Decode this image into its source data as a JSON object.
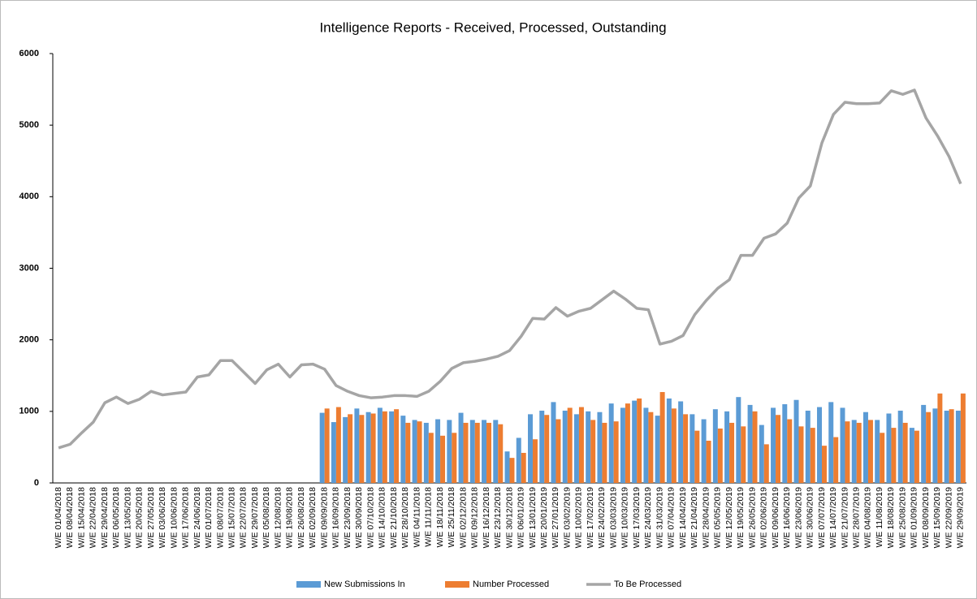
{
  "chart_data": {
    "type": "bar-line",
    "title": "Intelligence Reports - Received, Processed, Outstanding",
    "categories": [
      "W/E 01/04/2018",
      "W/E 08/04/2018",
      "W/E 15/04/2018",
      "W/E 22/04/2018",
      "W/E 29/04/2018",
      "W/E 06/05/2018",
      "W/E 13/05/2018",
      "W/E 20/05/2018",
      "W/E 27/05/2018",
      "W/E 03/06/2018",
      "W/E 10/06/2018",
      "W/E 17/06/2018",
      "W/E 24/06/2018",
      "W/E 01/07/2018",
      "W/E 08/07/2018",
      "W/E 15/07/2018",
      "W/E 22/07/2018",
      "W/E 29/07/2018",
      "W/E 05/08/2018",
      "W/E 12/08/2018",
      "W/E 19/08/2018",
      "W/E 26/08/2018",
      "W/E 02/09/2018",
      "W/E 09/09/2018",
      "W/E 16/09/2018",
      "W/E 23/09/2018",
      "W/E 30/09/2018",
      "W/E 07/10/2018",
      "W/E 14/10/2018",
      "W/E 21/10/2018",
      "W/E 28/10/2018",
      "W/E 04/11/2018",
      "W/E 11/11/2018",
      "W/E 18/11/2018",
      "W/E 25/11/2018",
      "W/E 02/12/2018",
      "W/E 09/12/2018",
      "W/E 16/12/2018",
      "W/E 23/12/2018",
      "W/E 30/12/2018",
      "W/E 06/01/2019",
      "W/E 13/01/2019",
      "W/E 20/01/2019",
      "W/E 27/01/2019",
      "W/E 03/02/2019",
      "W/E 10/02/2019",
      "W/E 17/02/2019",
      "W/E 24/02/2019",
      "W/E 03/03/2019",
      "W/E 10/03/2019",
      "W/E 17/03/2019",
      "W/E 24/03/2019",
      "W/E 31/03/2019",
      "W/E 07/04/2019",
      "W/E 14/04/2019",
      "W/E 21/04/2019",
      "W/E 28/04/2019",
      "W/E 05/05/2019",
      "W/E 12/05/2019",
      "W/E 19/05/2019",
      "W/E 26/05/2019",
      "W/E 02/06/2019",
      "W/E 09/06/2019",
      "W/E 16/06/2019",
      "W/E 23/06/2019",
      "W/E 30/06/2019",
      "W/E 07/07/2019",
      "W/E 14/07/2019",
      "W/E 21/07/2019",
      "W/E 28/07/2019",
      "W/E 04/08/2019",
      "W/E 11/08/2019",
      "W/E 18/08/2019",
      "W/E 25/08/2019",
      "W/E 01/09/2019",
      "W/E 08/09/2019",
      "W/E 15/09/2019",
      "W/E 22/09/2019",
      "W/E 29/09/2019"
    ],
    "series": [
      {
        "name": "New Submissions In",
        "type": "bar",
        "color": "#5b9bd5",
        "values": [
          null,
          null,
          null,
          null,
          null,
          null,
          null,
          null,
          null,
          null,
          null,
          null,
          null,
          null,
          null,
          null,
          null,
          null,
          null,
          null,
          null,
          null,
          null,
          980,
          850,
          920,
          1040,
          990,
          1050,
          1000,
          940,
          880,
          840,
          890,
          880,
          980,
          880,
          880,
          880,
          440,
          630,
          960,
          1010,
          1130,
          1010,
          960,
          1000,
          990,
          1110,
          1050,
          1150,
          1050,
          940,
          1180,
          1140,
          960,
          890,
          1030,
          1000,
          1200,
          1090,
          810,
          1050,
          1100,
          1160,
          1010,
          1060,
          1130,
          1050,
          880,
          990,
          880,
          970,
          1010,
          770,
          1090,
          1040,
          1010,
          1010
        ]
      },
      {
        "name": "Number Processed",
        "type": "bar",
        "color": "#ed7d31",
        "values": [
          null,
          null,
          null,
          null,
          null,
          null,
          null,
          null,
          null,
          null,
          null,
          null,
          null,
          null,
          null,
          null,
          null,
          null,
          null,
          null,
          null,
          null,
          null,
          1040,
          1060,
          960,
          950,
          970,
          1000,
          1030,
          840,
          860,
          700,
          660,
          700,
          840,
          840,
          840,
          820,
          350,
          420,
          610,
          950,
          890,
          1050,
          1060,
          880,
          840,
          860,
          1110,
          1180,
          990,
          1270,
          1040,
          960,
          730,
          590,
          760,
          840,
          790,
          1000,
          540,
          950,
          890,
          790,
          770,
          520,
          640,
          860,
          840,
          880,
          700,
          770,
          840,
          730,
          990,
          1250,
          1030,
          1250
        ]
      },
      {
        "name": "To  Be Processed",
        "type": "line",
        "color": "#a5a5a5",
        "values": [
          490,
          540,
          700,
          850,
          1120,
          1200,
          1110,
          1170,
          1280,
          1230,
          1250,
          1270,
          1480,
          1510,
          1710,
          1710,
          1550,
          1390,
          1580,
          1660,
          1480,
          1650,
          1660,
          1590,
          1360,
          1280,
          1220,
          1190,
          1200,
          1220,
          1220,
          1210,
          1280,
          1420,
          1600,
          1680,
          1700,
          1730,
          1770,
          1850,
          2050,
          2300,
          2290,
          2450,
          2330,
          2400,
          2440,
          2560,
          2680,
          2570,
          2440,
          2420,
          1940,
          1980,
          2060,
          2350,
          2550,
          2720,
          2840,
          3180,
          3180,
          3420,
          3480,
          3630,
          3980,
          4150,
          4750,
          5150,
          5320,
          5300,
          5300,
          5310,
          5480,
          5430,
          5490,
          5100,
          4850,
          4560,
          4180
        ]
      }
    ],
    "ylim": [
      0,
      6000
    ],
    "yticks": [
      0,
      1000,
      2000,
      3000,
      4000,
      5000,
      6000
    ],
    "grid": false,
    "legend": "bottom"
  }
}
